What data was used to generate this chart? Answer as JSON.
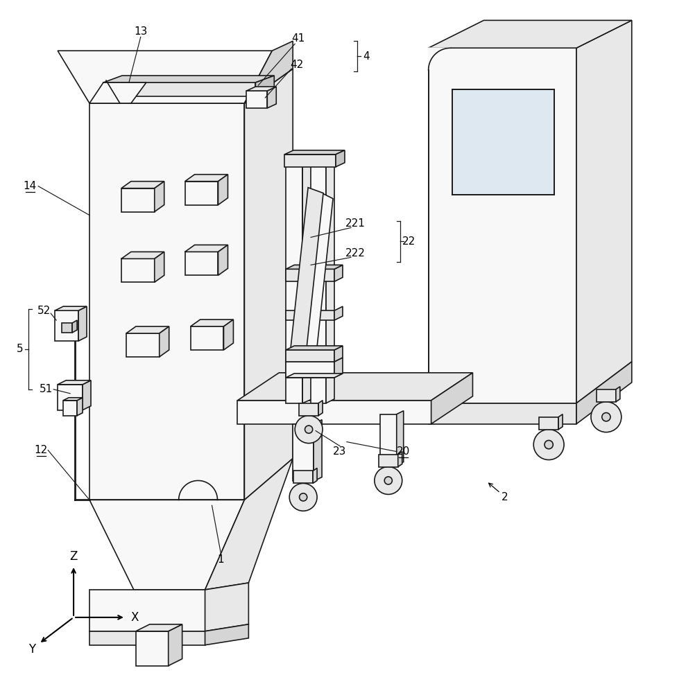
{
  "bg_color": "#ffffff",
  "lc": "#1a1a1a",
  "lw": 1.2,
  "figsize": [
    9.76,
    10.0
  ],
  "dpi": 100,
  "xlim": [
    0,
    976
  ],
  "ylim": [
    0,
    1000
  ],
  "fc_light": "#f8f8f8",
  "fc_mid": "#e8e8e8",
  "fc_dark": "#d5d5d5",
  "fc_darker": "#c5c5c5",
  "fc_blue": "#dde8f0"
}
